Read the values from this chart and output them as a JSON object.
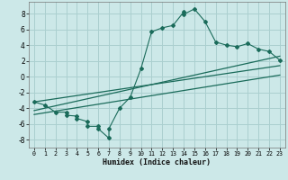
{
  "xlabel": "Humidex (Indice chaleur)",
  "bg_color": "#cce8e8",
  "grid_color": "#aacfcf",
  "line_color": "#1a6b5a",
  "xlim": [
    -0.5,
    23.5
  ],
  "ylim": [
    -9,
    9.5
  ],
  "xticks": [
    0,
    1,
    2,
    3,
    4,
    5,
    6,
    7,
    8,
    9,
    10,
    11,
    12,
    13,
    14,
    15,
    16,
    17,
    18,
    19,
    20,
    21,
    22,
    23
  ],
  "yticks": [
    -8,
    -6,
    -4,
    -2,
    0,
    2,
    4,
    6,
    8
  ],
  "scatter_x": [
    0,
    1,
    2,
    3,
    3,
    4,
    4,
    5,
    5,
    6,
    6,
    7,
    7,
    8,
    9,
    10,
    11,
    12,
    13,
    14,
    14,
    15,
    16,
    17,
    18,
    19,
    20,
    21,
    22,
    23
  ],
  "scatter_y": [
    -3.2,
    -3.6,
    -4.5,
    -4.5,
    -4.9,
    -5.0,
    -5.3,
    -5.7,
    -6.3,
    -6.3,
    -6.6,
    -7.8,
    -6.6,
    -4.0,
    -2.6,
    1.0,
    5.7,
    6.2,
    6.5,
    8.2,
    7.9,
    8.6,
    7.0,
    4.4,
    4.0,
    3.8,
    4.2,
    3.5,
    3.2,
    2.1
  ],
  "line1_x": [
    0,
    23
  ],
  "line1_y": [
    -4.3,
    2.6
  ],
  "line2_x": [
    0,
    23
  ],
  "line2_y": [
    -3.2,
    1.4
  ],
  "line3_x": [
    0,
    23
  ],
  "line3_y": [
    -4.8,
    0.2
  ]
}
